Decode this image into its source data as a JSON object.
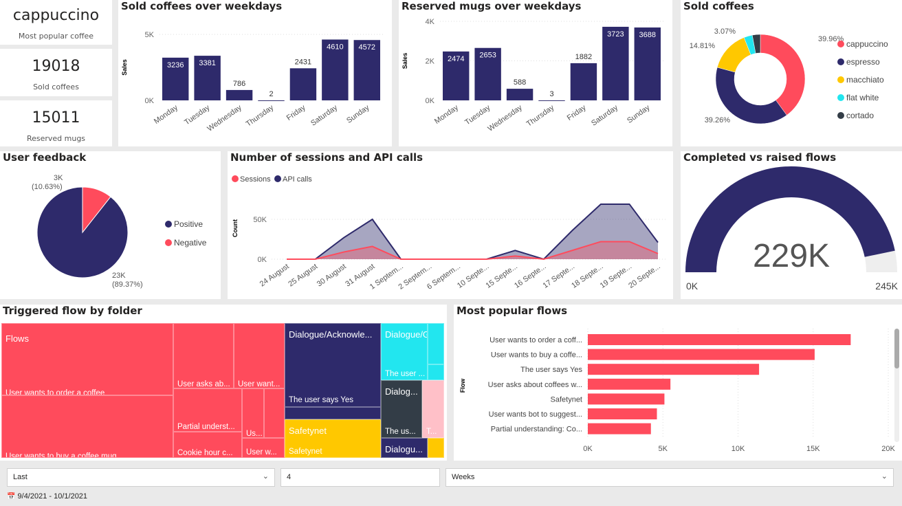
{
  "kpis": [
    {
      "value": "cappuccino",
      "label": "Most popular coffee"
    },
    {
      "value": "19018",
      "label": "Sold coffees"
    },
    {
      "value": "15011",
      "label": "Reserved mugs"
    }
  ],
  "colors": {
    "navy": "#2e2a6b",
    "red": "#ff4b5c",
    "yellow": "#ffc800",
    "cyan": "#22e6ef",
    "dark": "#333d47",
    "pink": "#ffc0c8"
  },
  "chart_data": [
    {
      "id": "sold_weekdays",
      "type": "bar",
      "title": "Sold coffees over weekdays",
      "ylabel": "Sales",
      "categories": [
        "Monday",
        "Tuesday",
        "Wednesday",
        "Thursday",
        "Friday",
        "Saturday",
        "Sunday"
      ],
      "values": [
        3236,
        3381,
        786,
        2,
        2431,
        4610,
        4572
      ],
      "yticks": [
        "0K",
        "5K"
      ],
      "ylim": [
        0,
        5000
      ]
    },
    {
      "id": "mugs_weekdays",
      "type": "bar",
      "title": "Reserved mugs over weekdays",
      "ylabel": "Sales",
      "categories": [
        "Monday",
        "Tuesday",
        "Wednesday",
        "Thursday",
        "Friday",
        "Saturday",
        "Sunday"
      ],
      "values": [
        2474,
        2653,
        588,
        3,
        1882,
        3723,
        3688
      ],
      "yticks": [
        "0K",
        "2K",
        "4K"
      ],
      "ylim": [
        0,
        4000
      ]
    },
    {
      "id": "sold_coffees",
      "type": "pie",
      "title": "Sold coffees",
      "categories": [
        "cappuccino",
        "espresso",
        "macchiato",
        "flat white",
        "cortado"
      ],
      "values": [
        39.96,
        39.26,
        14.81,
        3.07,
        2.9
      ],
      "labels": [
        "39.96%",
        "39.26%",
        "14.81%",
        "3.07%",
        ""
      ],
      "legend": "right"
    },
    {
      "id": "feedback",
      "type": "pie",
      "title": "User feedback",
      "categories": [
        "Positive",
        "Negative"
      ],
      "values": [
        89.37,
        10.63
      ],
      "labels": [
        "23K\n(89.37%)",
        "3K\n(10.63%)"
      ],
      "legend": "right"
    },
    {
      "id": "sessions",
      "type": "area",
      "title": "Number of sessions and API calls",
      "ylabel": "Count",
      "legend": "top-left",
      "x": [
        "24 August",
        "25 August",
        "30 August",
        "31 August",
        "1 Septem...",
        "2 Septem...",
        "6 Septem...",
        "10 Septe...",
        "15 Septe...",
        "16 Septe...",
        "17 Septe...",
        "18 Septe...",
        "19 Septe...",
        "20 Septe..."
      ],
      "series": [
        {
          "name": "Sessions",
          "values": [
            0,
            0,
            9000,
            16000,
            0,
            0,
            0,
            0,
            4000,
            0,
            11000,
            22000,
            22000,
            7000
          ]
        },
        {
          "name": "API calls",
          "values": [
            0,
            0,
            27000,
            50000,
            0,
            0,
            0,
            0,
            11000,
            0,
            36000,
            69000,
            69000,
            21000
          ]
        }
      ],
      "yticks": [
        "0K",
        "50K"
      ],
      "ylim": [
        0,
        70000
      ]
    },
    {
      "id": "gauge",
      "type": "gauge",
      "title": "Completed vs raised flows",
      "value": 229,
      "max": 245,
      "value_label": "229K",
      "min_label": "0K",
      "max_label": "245K"
    },
    {
      "id": "popular_flows",
      "type": "bar",
      "orientation": "horizontal",
      "title": "Most popular flows",
      "ylabel": "Flow",
      "categories": [
        "User wants to order a coff...",
        "User wants to buy a coffe...",
        "The user says Yes",
        "User asks about coffees w...",
        "Safetynet",
        "User wants bot to suggest...",
        "Partial understanding: Co..."
      ],
      "values": [
        17500,
        15100,
        11400,
        5500,
        5100,
        4600,
        4200
      ],
      "xticks": [
        "0K",
        "5K",
        "10K",
        "15K",
        "20K"
      ],
      "xlim": [
        0,
        20000
      ]
    }
  ],
  "treemap": {
    "title": "Triggered flow by folder",
    "labels": [
      "Flows",
      "User wants to order a coffee",
      "User wants to buy a coffee mug",
      "User asks ab...",
      "User want...",
      "Partial underst...",
      "Cookie hour c...",
      "Us...",
      "User w...",
      "Dialogue/Acknowle...",
      "The user says Yes",
      "Safetynet",
      "Safetynet",
      "Dialogue/G...",
      "The user ...",
      "Dialog...",
      "The us...",
      "T...",
      "Dialogu..."
    ]
  },
  "filters": {
    "relative": "Last",
    "count": "4",
    "unit": "Weeks",
    "date_range": "9/4/2021 - 10/1/2021"
  }
}
